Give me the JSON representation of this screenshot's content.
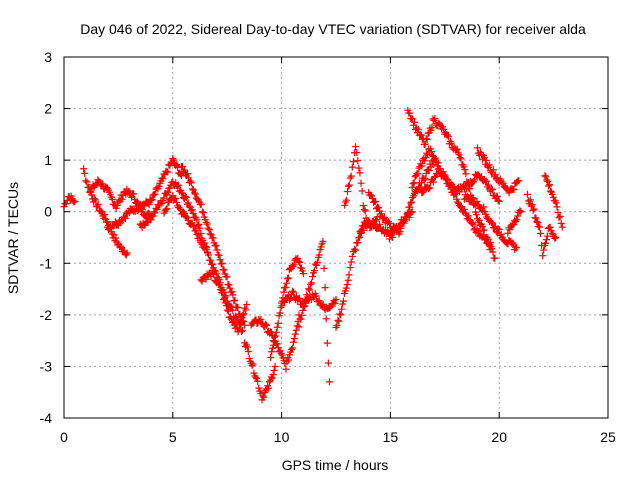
{
  "chart_data": {
    "type": "scatter",
    "title": "Day 046 of 2022, Sidereal Day-to-day VTEC variation (SDTVAR) for receiver alda",
    "xlabel": "GPS time / hours",
    "ylabel": "SDTVAR / TECUs",
    "xlim": [
      0,
      25
    ],
    "ylim": [
      -4,
      3
    ],
    "xticks": [
      0,
      5,
      10,
      15,
      20,
      25
    ],
    "yticks": [
      -4,
      -3,
      -2,
      -1,
      0,
      1,
      2,
      3
    ],
    "xtick_labels": [
      "0",
      "5",
      "10",
      "15",
      "20",
      "25"
    ],
    "ytick_labels": [
      "-4",
      "-3",
      "-2",
      "-1",
      "0",
      "1",
      "2",
      "3"
    ],
    "grid": true,
    "marker": "+",
    "series": [
      {
        "name": "SDTVAR",
        "color": "#ff0000",
        "tracks": [
          [
            [
              0.0,
              0.1
            ],
            [
              0.2,
              0.3
            ],
            [
              0.5,
              0.2
            ]
          ],
          [
            [
              0.9,
              0.8
            ],
            [
              1.1,
              0.5
            ],
            [
              1.4,
              0.2
            ],
            [
              1.7,
              0.0
            ],
            [
              2.0,
              -0.2
            ],
            [
              2.3,
              -0.5
            ],
            [
              2.6,
              -0.7
            ],
            [
              2.9,
              -0.8
            ]
          ],
          [
            [
              1.2,
              0.4
            ],
            [
              1.6,
              0.6
            ],
            [
              2.0,
              0.4
            ],
            [
              2.4,
              0.1
            ],
            [
              2.8,
              0.4
            ],
            [
              3.2,
              0.3
            ],
            [
              3.6,
              0.0
            ],
            [
              4.0,
              -0.1
            ]
          ],
          [
            [
              2.0,
              -0.3
            ],
            [
              2.5,
              -0.2
            ],
            [
              3.0,
              0.0
            ],
            [
              3.5,
              0.1
            ],
            [
              4.0,
              0.2
            ],
            [
              4.5,
              0.6
            ],
            [
              5.0,
              1.0
            ],
            [
              5.4,
              0.7
            ]
          ],
          [
            [
              3.5,
              -0.3
            ],
            [
              4.0,
              -0.1
            ],
            [
              4.5,
              0.2
            ],
            [
              5.0,
              0.6
            ],
            [
              5.4,
              0.4
            ],
            [
              5.8,
              0.1
            ],
            [
              6.2,
              -0.3
            ],
            [
              6.6,
              -0.8
            ]
          ],
          [
            [
              4.6,
              0.0
            ],
            [
              5.0,
              0.3
            ],
            [
              5.4,
              0.0
            ],
            [
              5.8,
              -0.2
            ],
            [
              6.2,
              -0.5
            ],
            [
              6.6,
              -0.8
            ],
            [
              7.0,
              -1.2
            ],
            [
              7.4,
              -1.6
            ],
            [
              7.8,
              -2.0
            ],
            [
              8.2,
              -2.3
            ]
          ],
          [
            [
              5.4,
              0.9
            ],
            [
              5.9,
              0.5
            ],
            [
              6.4,
              0.0
            ],
            [
              6.9,
              -0.6
            ],
            [
              7.4,
              -1.2
            ],
            [
              7.9,
              -1.8
            ],
            [
              8.3,
              -2.2
            ]
          ],
          [
            [
              6.3,
              -1.3
            ],
            [
              6.8,
              -1.2
            ],
            [
              7.2,
              -1.5
            ],
            [
              7.6,
              -2.0
            ],
            [
              8.0,
              -2.3
            ],
            [
              8.4,
              -1.8
            ]
          ],
          [
            [
              8.3,
              -2.5
            ],
            [
              8.6,
              -2.9
            ],
            [
              8.9,
              -3.3
            ],
            [
              9.1,
              -3.6
            ],
            [
              9.4,
              -3.4
            ],
            [
              9.7,
              -3.0
            ]
          ],
          [
            [
              8.6,
              -2.2
            ],
            [
              9.0,
              -2.1
            ],
            [
              9.4,
              -2.3
            ],
            [
              9.8,
              -2.6
            ],
            [
              10.2,
              -3.0
            ],
            [
              10.5,
              -2.6
            ],
            [
              10.8,
              -2.0
            ]
          ],
          [
            [
              9.5,
              -2.8
            ],
            [
              9.8,
              -2.2
            ],
            [
              10.1,
              -1.6
            ],
            [
              10.4,
              -1.1
            ],
            [
              10.7,
              -0.9
            ],
            [
              11.0,
              -1.2
            ]
          ],
          [
            [
              10.0,
              -1.8
            ],
            [
              10.5,
              -1.6
            ],
            [
              11.0,
              -1.8
            ],
            [
              11.5,
              -1.6
            ],
            [
              12.0,
              -1.9
            ],
            [
              12.5,
              -1.7
            ]
          ],
          [
            [
              10.8,
              -2.2
            ],
            [
              11.2,
              -1.6
            ],
            [
              11.6,
              -1.0
            ],
            [
              11.9,
              -0.6
            ],
            [
              12.0,
              -1.5
            ],
            [
              12.1,
              -2.6
            ],
            [
              12.2,
              -3.3
            ]
          ],
          [
            [
              12.5,
              -2.3
            ],
            [
              12.8,
              -1.8
            ],
            [
              13.1,
              -1.2
            ],
            [
              13.3,
              -0.8
            ],
            [
              13.5,
              -0.6
            ],
            [
              13.8,
              -0.2
            ]
          ],
          [
            [
              12.9,
              0.1
            ],
            [
              13.2,
              0.7
            ],
            [
              13.4,
              1.3
            ],
            [
              13.6,
              0.7
            ],
            [
              13.8,
              0.0
            ],
            [
              14.1,
              -0.3
            ],
            [
              14.4,
              -0.1
            ]
          ],
          [
            [
              13.6,
              -0.4
            ],
            [
              14.0,
              -0.2
            ],
            [
              14.5,
              -0.3
            ],
            [
              15.0,
              -0.5
            ],
            [
              15.5,
              -0.2
            ],
            [
              16.0,
              0.0
            ]
          ],
          [
            [
              14.0,
              0.4
            ],
            [
              14.5,
              0.0
            ],
            [
              15.0,
              -0.3
            ],
            [
              15.4,
              -0.4
            ],
            [
              15.8,
              0.0
            ],
            [
              16.2,
              0.4
            ],
            [
              16.6,
              0.7
            ],
            [
              17.0,
              1.0
            ]
          ],
          [
            [
              15.8,
              2.0
            ],
            [
              16.2,
              1.6
            ],
            [
              16.6,
              1.3
            ],
            [
              17.0,
              1.8
            ],
            [
              17.4,
              1.6
            ],
            [
              17.8,
              1.3
            ],
            [
              18.2,
              1.1
            ],
            [
              18.6,
              0.5
            ],
            [
              19.0,
              -0.1
            ],
            [
              19.4,
              -0.5
            ],
            [
              19.8,
              -0.9
            ]
          ],
          [
            [
              16.0,
              0.5
            ],
            [
              16.4,
              0.9
            ],
            [
              16.8,
              1.2
            ],
            [
              17.2,
              0.9
            ],
            [
              17.6,
              0.6
            ],
            [
              18.0,
              0.3
            ],
            [
              18.4,
              0.0
            ],
            [
              18.8,
              -0.3
            ],
            [
              19.2,
              -0.5
            ],
            [
              19.6,
              -0.6
            ]
          ],
          [
            [
              16.4,
              0.4
            ],
            [
              16.8,
              0.5
            ],
            [
              17.2,
              0.8
            ],
            [
              17.6,
              0.6
            ],
            [
              18.0,
              0.4
            ],
            [
              18.5,
              0.5
            ],
            [
              19.0,
              0.7
            ],
            [
              19.5,
              0.5
            ],
            [
              20.0,
              0.2
            ]
          ],
          [
            [
              18.4,
              0.3
            ],
            [
              18.8,
              0.2
            ],
            [
              19.2,
              0.1
            ],
            [
              19.6,
              -0.2
            ],
            [
              20.0,
              -0.4
            ],
            [
              20.4,
              -0.6
            ],
            [
              20.8,
              -0.7
            ]
          ],
          [
            [
              19.0,
              1.2
            ],
            [
              19.5,
              0.9
            ],
            [
              20.0,
              0.6
            ],
            [
              20.5,
              0.4
            ],
            [
              20.9,
              0.6
            ]
          ],
          [
            [
              20.4,
              -0.4
            ],
            [
              20.8,
              -0.1
            ],
            [
              21.0,
              0.0
            ]
          ],
          [
            [
              21.3,
              0.3
            ],
            [
              21.6,
              0.0
            ],
            [
              21.9,
              -0.4
            ],
            [
              22.0,
              -0.8
            ],
            [
              22.3,
              -0.3
            ],
            [
              22.6,
              -0.5
            ]
          ],
          [
            [
              22.1,
              0.7
            ],
            [
              22.4,
              0.4
            ],
            [
              22.7,
              0.0
            ],
            [
              22.9,
              -0.3
            ]
          ]
        ]
      }
    ]
  }
}
